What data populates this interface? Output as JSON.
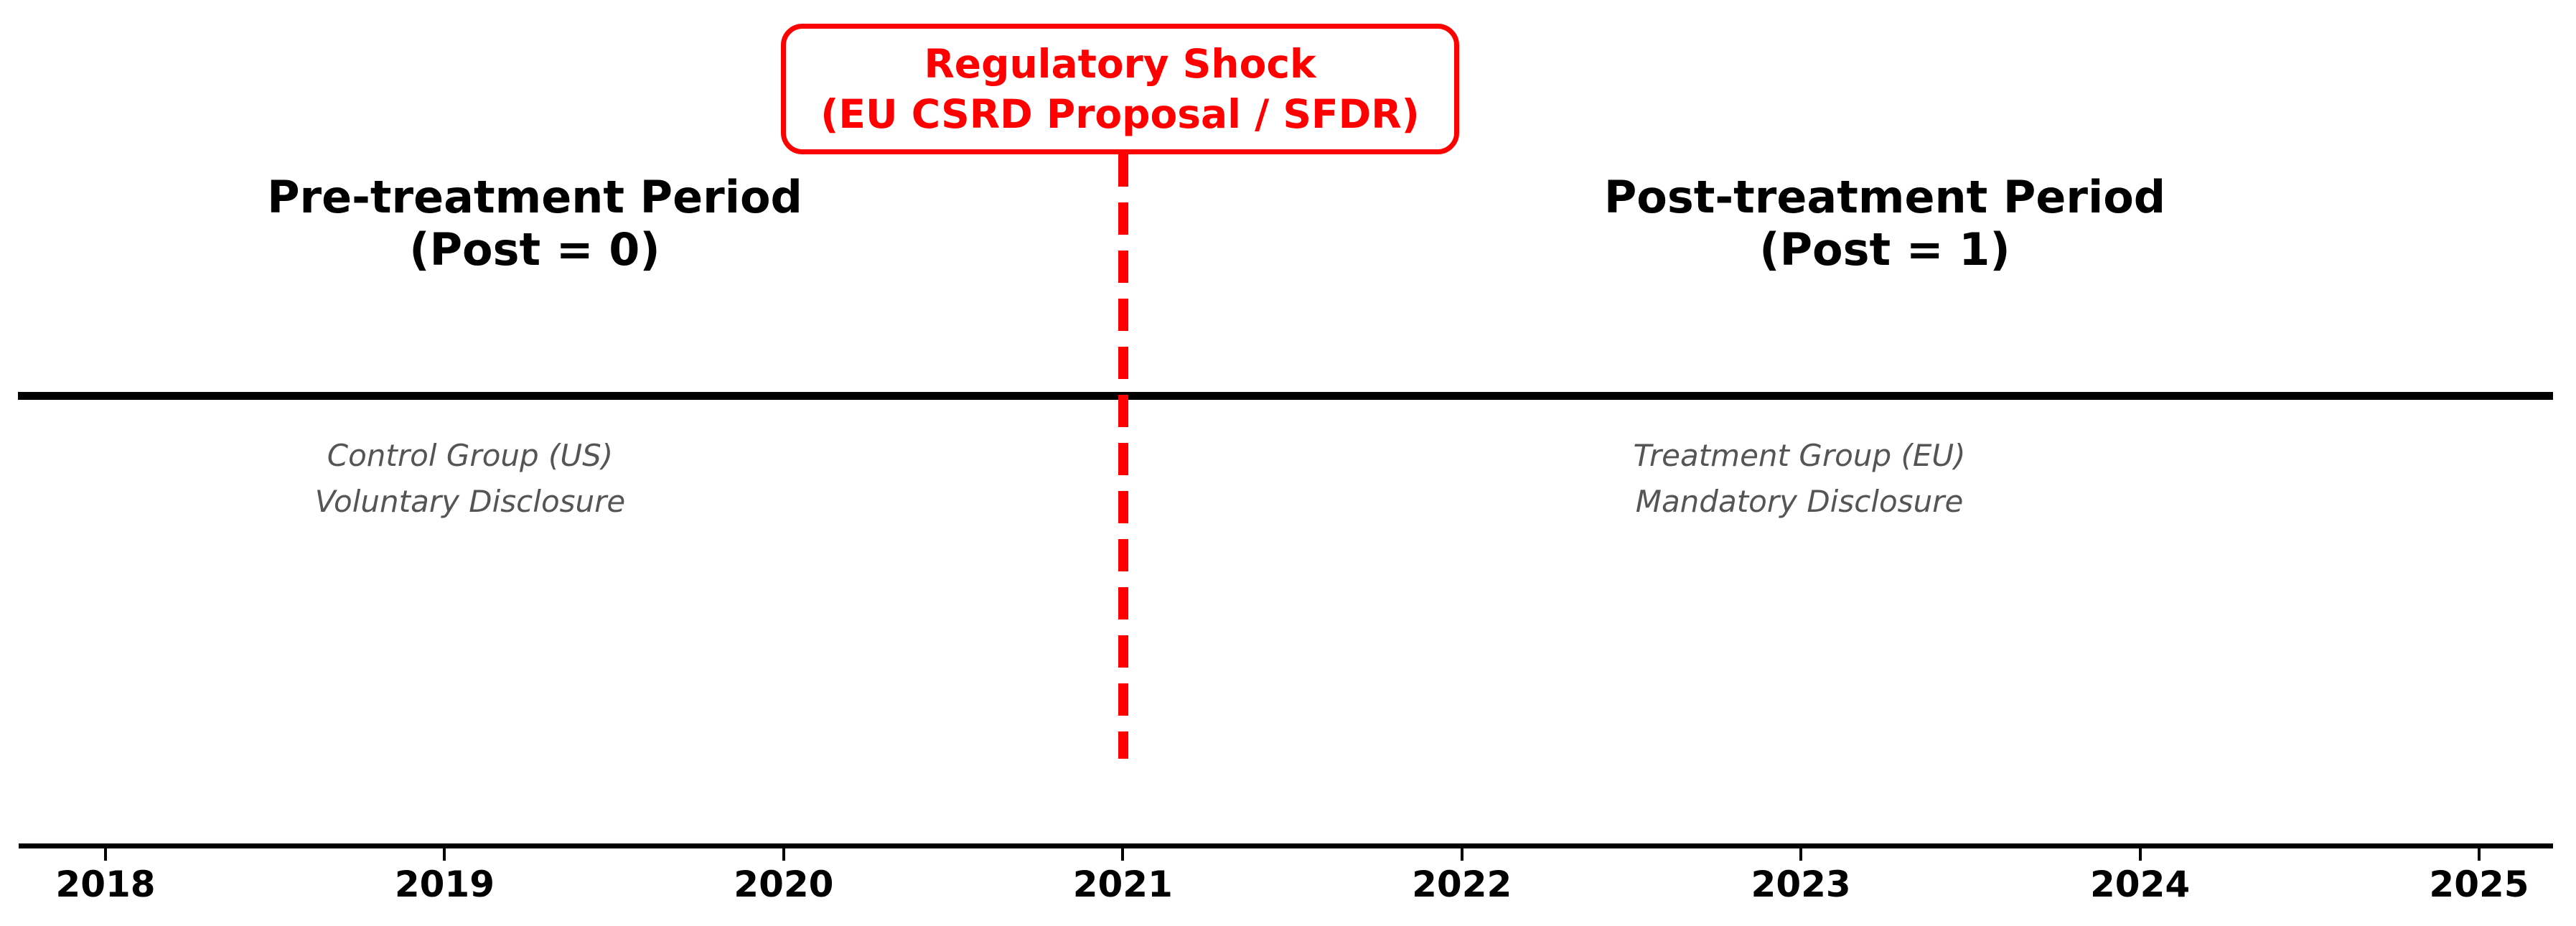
{
  "figure": {
    "shock": {
      "line1": "Regulatory Shock",
      "line2": "(EU CSRD Proposal / SFDR)",
      "event_year": "2021"
    },
    "pre_period": {
      "title": "Pre-treatment Period",
      "subtitle": "(Post = 0)",
      "group_line1": "Control Group (US)",
      "group_line2": "Voluntary Disclosure"
    },
    "post_period": {
      "title": "Post-treatment Period",
      "subtitle": "(Post = 1)",
      "group_line1": "Treatment Group (EU)",
      "group_line2": "Mandatory Disclosure"
    },
    "axis": {
      "years": [
        "2018",
        "2019",
        "2020",
        "2021",
        "2022",
        "2023",
        "2024",
        "2025"
      ]
    },
    "colors": {
      "accent_red": "#ff0000",
      "axis_black": "#000000",
      "group_gray": "#555555"
    }
  }
}
